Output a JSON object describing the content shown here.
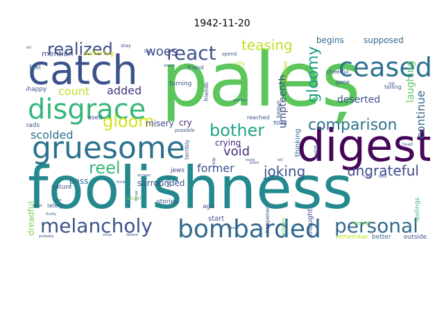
{
  "title": "1942-11-20",
  "words": [
    {
      "text": "paleș",
      "color": "#5cc65d"
    },
    {
      "text": "foolishness",
      "color": "#23898e"
    },
    {
      "text": "digest",
      "color": "#450558"
    },
    {
      "text": "catch",
      "color": "#3b528b"
    },
    {
      "text": "gruesome",
      "color": "#2c728e"
    },
    {
      "text": "disgrace",
      "color": "#35b779"
    },
    {
      "text": "ceased",
      "color": "#2c728e"
    },
    {
      "text": "bombarded",
      "color": "#31688e"
    },
    {
      "text": "melancholy",
      "color": "#3b528b"
    },
    {
      "text": "personal",
      "color": "#31688e"
    },
    {
      "text": "realized",
      "color": "#3e4a89"
    },
    {
      "text": "react",
      "color": "#3b528b"
    },
    {
      "text": "gloom",
      "color": "#d8e219"
    },
    {
      "text": "reel",
      "color": "#35b779"
    },
    {
      "text": "bother",
      "color": "#20a386"
    },
    {
      "text": "comparison",
      "color": "#2c728e"
    },
    {
      "text": "gloomy",
      "color": "#1f9e89"
    },
    {
      "text": "teasing",
      "color": "#bddf26"
    },
    {
      "text": "woes",
      "color": "#3e4a89"
    },
    {
      "text": "joking",
      "color": "#3b528b"
    },
    {
      "text": "ungrateful",
      "color": "#3e4a89"
    },
    {
      "text": "scolded",
      "color": "#2c728e"
    },
    {
      "text": "count",
      "color": "#bddf26"
    },
    {
      "text": "added",
      "color": "#46327e"
    },
    {
      "text": "void",
      "color": "#472d7b"
    },
    {
      "text": "former",
      "color": "#3b528b"
    },
    {
      "text": "continue",
      "color": "#31688e"
    },
    {
      "text": "deserted",
      "color": "#3b528b"
    },
    {
      "text": "crying",
      "color": "#482878"
    },
    {
      "text": "misery",
      "color": "#3e4a89"
    },
    {
      "text": "cry",
      "color": "#482878"
    },
    {
      "text": "pass",
      "color": "#2c728e"
    },
    {
      "text": "surrounded",
      "color": "#3b528b"
    },
    {
      "text": "umpteenth",
      "color": "#3e4a89"
    },
    {
      "text": "laughing",
      "color": "#5ec962"
    },
    {
      "text": "mention",
      "color": "#3b528b"
    },
    {
      "text": "suffering",
      "color": "#d8e219"
    },
    {
      "text": "begins",
      "color": "#31688e"
    },
    {
      "text": "supposed",
      "color": "#31688e"
    },
    {
      "text": "dreadful",
      "color": "#7ad151"
    },
    {
      "text": "stories",
      "color": "#3b528b"
    },
    {
      "text": "thinking",
      "color": "#2c728e"
    },
    {
      "text": "thought",
      "color": "#3b528b"
    },
    {
      "text": "remember",
      "color": "#bddf26"
    },
    {
      "text": "better",
      "color": "#31688e"
    },
    {
      "text": "outside",
      "color": "#3b528b"
    },
    {
      "text": "feelings",
      "color": "#35b779"
    },
    {
      "text": "secret",
      "color": "#6ece58"
    },
    {
      "text": "start",
      "color": "#3b528b"
    },
    {
      "text": "either",
      "color": "#5ec962"
    },
    {
      "text": "happened",
      "color": "#3b528b"
    },
    {
      "text": "ago",
      "color": "#3b528b"
    },
    {
      "text": "jews",
      "color": "#3e4a89"
    },
    {
      "text": "told",
      "color": "#2c728e"
    },
    {
      "text": "terribly",
      "color": "#3b528b"
    },
    {
      "text": "usual",
      "color": "#7ad151"
    },
    {
      "text": "lately",
      "color": "#3b528b"
    },
    {
      "text": "nature",
      "color": "#3b528b"
    },
    {
      "text": "questions",
      "color": "#3b528b"
    },
    {
      "text": "heads",
      "color": "#3b528b"
    },
    {
      "text": "used",
      "color": "#3b528b"
    },
    {
      "text": "unhappy",
      "color": "#3b528b"
    },
    {
      "text": "feel",
      "color": "#31688e"
    },
    {
      "text": "turning",
      "color": "#3b528b"
    },
    {
      "text": "friend",
      "color": "#3b528b"
    },
    {
      "text": "friends",
      "color": "#3e4a89"
    },
    {
      "text": "silly",
      "color": "#bddf26"
    },
    {
      "text": "decided",
      "color": "#bddf26"
    },
    {
      "text": "begun",
      "color": "#3b528b"
    },
    {
      "text": "cheerful",
      "color": "#3b528b"
    },
    {
      "text": "gone",
      "color": "#3b528b"
    },
    {
      "text": "telling",
      "color": "#3b528b"
    },
    {
      "text": "reached",
      "color": "#3b528b"
    },
    {
      "text": "filled",
      "color": "#3b528b"
    },
    {
      "text": "possible",
      "color": "#3b528b"
    },
    {
      "text": "point",
      "color": "#3b528b"
    },
    {
      "text": "stay",
      "color": "#3b528b"
    },
    {
      "text": "spend",
      "color": "#3b528b"
    },
    {
      "text": "help",
      "color": "#3b528b"
    },
    {
      "text": "bad",
      "color": "#3b528b"
    },
    {
      "text": "another",
      "color": "#3b528b"
    },
    {
      "text": "still",
      "color": "#3b528b"
    },
    {
      "text": "head",
      "color": "#3b528b"
    },
    {
      "text": "finally",
      "color": "#3b528b"
    },
    {
      "text": "probably",
      "color": "#3b528b"
    },
    {
      "text": "good",
      "color": "#3b528b"
    },
    {
      "text": "best",
      "color": "#3b528b"
    },
    {
      "text": "place",
      "color": "#3b528b"
    },
    {
      "text": "tell",
      "color": "#3b528b"
    },
    {
      "text": "think",
      "color": "#3b528b"
    },
    {
      "text": "bell",
      "color": "#3b528b"
    },
    {
      "text": "whole",
      "color": "#3b528b"
    },
    {
      "text": "since",
      "color": "#3b528b"
    },
    {
      "text": "doesnt",
      "color": "#3b528b"
    },
    {
      "text": "really",
      "color": "#3b528b"
    },
    {
      "text": "back",
      "color": "#3b528b"
    },
    {
      "text": "time",
      "color": "#3b528b"
    },
    {
      "text": "much",
      "color": "#3b528b"
    },
    {
      "text": "things",
      "color": "#3b528b"
    },
    {
      "text": "anyway",
      "color": "#3b528b"
    },
    {
      "text": "taken",
      "color": "#3b528b"
    }
  ]
}
